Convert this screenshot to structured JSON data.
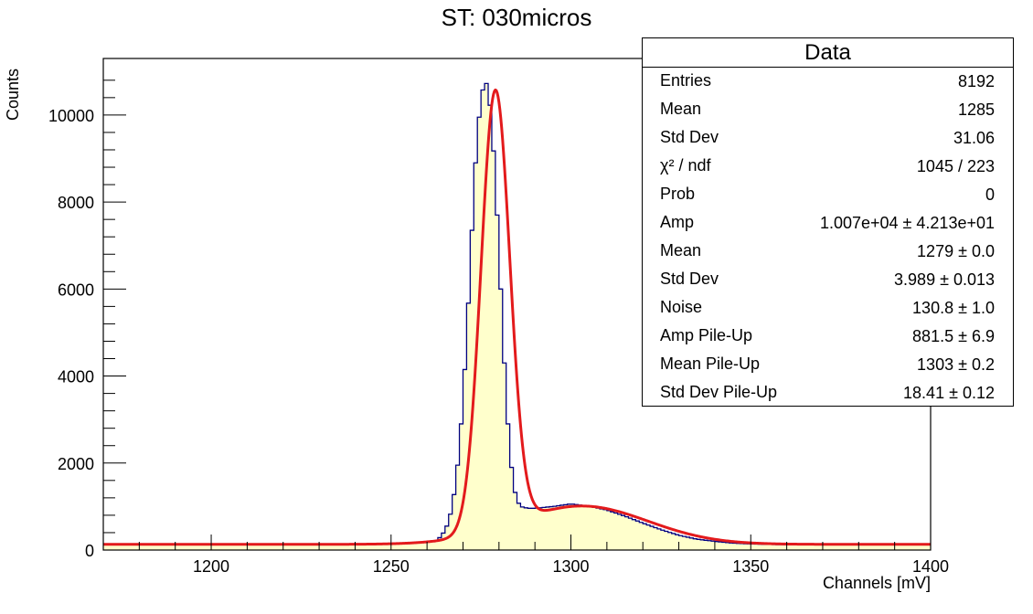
{
  "chart_data": {
    "type": "histogram",
    "title": "ST: 030micros",
    "xlabel": "Channels [mV]",
    "ylabel": "Counts",
    "xlim": [
      1170,
      1400
    ],
    "ylim": [
      0,
      11300
    ],
    "xticks": [
      1200,
      1250,
      1300,
      1350,
      1400
    ],
    "yticks": [
      0,
      2000,
      4000,
      6000,
      8000,
      10000
    ],
    "hist_color": "#000080",
    "fill_color": "#ffffcc",
    "fit_color": "#e31a1c",
    "histogram": {
      "x": [
        1262,
        1263,
        1264,
        1265,
        1266,
        1267,
        1268,
        1269,
        1270,
        1271,
        1272,
        1273,
        1274,
        1275,
        1276,
        1277,
        1278,
        1279,
        1280,
        1281,
        1282,
        1283,
        1284,
        1285,
        1286,
        1287,
        1288,
        1290,
        1295,
        1300,
        1305,
        1310,
        1315,
        1320,
        1325,
        1330,
        1335,
        1340,
        1345,
        1350,
        1360
      ],
      "y": [
        180,
        240,
        330,
        450,
        650,
        1000,
        1550,
        2350,
        3450,
        4850,
        6500,
        8200,
        9600,
        10300,
        10850,
        10600,
        9850,
        8500,
        6900,
        5100,
        3500,
        2300,
        1500,
        1150,
        1000,
        980,
        960,
        960,
        1000,
        1060,
        1010,
        920,
        780,
        620,
        470,
        340,
        250,
        200,
        160,
        140,
        120
      ]
    },
    "fit": {
      "type": "double gaussian + noise",
      "amp": 10070,
      "mean": 1279,
      "sigma": 3.989,
      "noise": 130.8,
      "amp_pileup": 881.5,
      "mean_pileup": 1303,
      "sigma_pileup": 18.41
    }
  },
  "stats": {
    "title": "Data",
    "rows": [
      {
        "name": "Entries",
        "value": "8192"
      },
      {
        "name": "Mean",
        "value": "1285"
      },
      {
        "name": "Std Dev",
        "value": "31.06"
      },
      {
        "name": "χ² / ndf",
        "value": "1045 / 223"
      },
      {
        "name": "Prob",
        "value": "0"
      },
      {
        "name": "Amp",
        "value": "1.007e+04 ± 4.213e+01"
      },
      {
        "name": "Mean",
        "value": "1279 ± 0.0"
      },
      {
        "name": "Std Dev",
        "value": "3.989 ± 0.013"
      },
      {
        "name": "Noise",
        "value": "130.8 ± 1.0"
      },
      {
        "name": "Amp Pile-Up",
        "value": "881.5 ± 6.9"
      },
      {
        "name": "Mean Pile-Up",
        "value": "1303 ± 0.2"
      },
      {
        "name": "Std Dev Pile-Up",
        "value": "18.41 ± 0.12"
      }
    ]
  }
}
